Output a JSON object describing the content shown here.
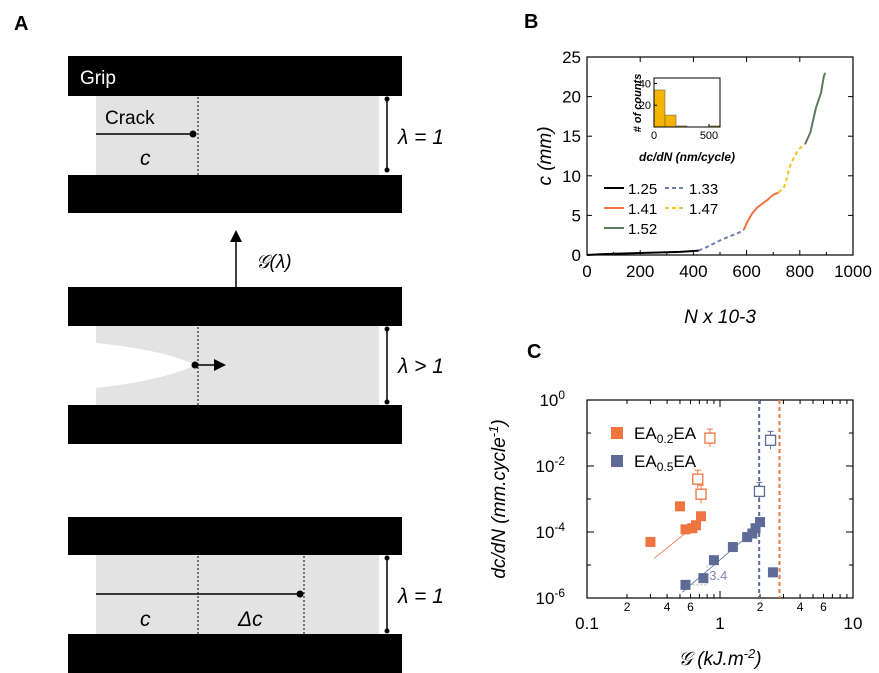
{
  "panel_a": {
    "label": "A",
    "grip_label": "Grip",
    "crack_label": "Crack",
    "c_label": "c",
    "stretch_1_label": "λ = 1",
    "stretch_gt_label": "λ > 1",
    "energy_label": "𝒢(λ)",
    "c_label_bottom": "c",
    "delta_c_label": "Δc",
    "stretch_3_label": "λ = 1"
  },
  "panel_b": {
    "label": "B",
    "inset": {
      "ylabel": "# of counts",
      "xlabel": "dc/dN (nm/cycle)"
    }
  },
  "panel_c": {
    "label": "C",
    "slope_label": "3.4"
  },
  "colors": {
    "grip": "#000000",
    "gel": "#e3e3e3",
    "s125": "#000000",
    "s133": "#6e7ea6",
    "s141": "#ee7540",
    "s147": "#f7c21b",
    "s152": "#5e7a5c",
    "ea02": "#ee7540",
    "ea05": "#5d6b96",
    "inset_bar": "#f5b400"
  },
  "chart_data": [
    {
      "type": "line",
      "xlabel": "N x 10-3",
      "ylabel": "c (mm)",
      "xlim": [
        0,
        1000
      ],
      "ylim": [
        0,
        25
      ],
      "xticks": [
        0,
        200,
        400,
        600,
        800,
        1000
      ],
      "xtick_labels": [
        "0",
        "200",
        "400",
        "600",
        "800",
        "1000"
      ],
      "yticks": [
        0,
        5,
        10,
        15,
        20,
        25
      ],
      "ytick_labels": [
        "0",
        "5",
        "10",
        "15",
        "20",
        "25"
      ],
      "legend": "lower-left",
      "series": [
        {
          "name": "1.25",
          "style": "solid",
          "x": [
            0,
            50,
            100,
            150,
            200,
            250,
            300,
            350,
            400,
            420
          ],
          "y": [
            0,
            0.1,
            0.15,
            0.2,
            0.25,
            0.3,
            0.35,
            0.4,
            0.5,
            0.55
          ]
        },
        {
          "name": "1.33",
          "style": "dashed",
          "x": [
            420,
            450,
            480,
            510,
            540,
            570,
            590
          ],
          "y": [
            0.55,
            1.0,
            1.5,
            2.0,
            2.4,
            2.8,
            3.2
          ]
        },
        {
          "name": "1.41",
          "style": "solid",
          "x": [
            590,
            600,
            620,
            640,
            660,
            680,
            690,
            700,
            720
          ],
          "y": [
            3.2,
            4.0,
            5.2,
            6.0,
            6.5,
            7.0,
            7.3,
            7.6,
            7.9
          ]
        },
        {
          "name": "1.47",
          "style": "dashed",
          "x": [
            720,
            740,
            750,
            760,
            780,
            800,
            820
          ],
          "y": [
            7.9,
            8.5,
            9.5,
            11.0,
            12.5,
            13.5,
            14.0
          ]
        },
        {
          "name": "1.52",
          "style": "solid",
          "x": [
            820,
            840,
            850,
            860,
            870,
            880,
            885,
            890,
            895
          ],
          "y": [
            14.0,
            15.5,
            17.0,
            18.5,
            19.5,
            20.5,
            21.5,
            22.5,
            23.0
          ]
        }
      ]
    },
    {
      "type": "bar",
      "xlabel": "dc/dN (nm/cycle)",
      "ylabel": "# of counts",
      "xlim": [
        0,
        600
      ],
      "ylim": [
        0,
        45
      ],
      "xticks": [
        0,
        500
      ],
      "xtick_labels": [
        "0",
        "500"
      ],
      "yticks": [
        0,
        20,
        40
      ],
      "ytick_labels": [
        "0",
        "20",
        "40"
      ],
      "bin_edges": [
        0,
        100,
        200,
        300,
        400,
        500,
        600
      ],
      "values": [
        34,
        11,
        1,
        0,
        0,
        1
      ]
    },
    {
      "type": "scatter",
      "xlabel": "𝒢 (kJ.m-2)",
      "ylabel": "dc/dN (mm.cycle-1)",
      "xscale": "log",
      "yscale": "log",
      "xlim": [
        0.1,
        10
      ],
      "ylim": [
        1e-06,
        1
      ],
      "xtick_labels": [
        "0.1",
        "1",
        "10"
      ],
      "minor_xtick_labels": [
        "2",
        "4",
        "6",
        "2",
        "4",
        "6"
      ],
      "ytick_labels": [
        "10-6",
        "10-4",
        "10-2",
        "100"
      ],
      "legend": "top-left",
      "series": [
        {
          "name": "EA0.2EA",
          "filled": {
            "x": [
              0.3,
              0.5,
              0.55,
              0.62,
              0.66,
              0.72
            ],
            "y": [
              5e-05,
              0.0006,
              0.00012,
              0.00013,
              0.00016,
              0.0003
            ]
          },
          "open": {
            "x": [
              0.68,
              0.72,
              0.84
            ],
            "y": [
              0.004,
              0.0014,
              0.07
            ]
          },
          "critical_G": 2.8
        },
        {
          "name": "EA0.5EA",
          "filled": {
            "x": [
              0.55,
              0.75,
              0.9,
              1.25,
              1.6,
              1.75,
              1.85,
              2.0,
              2.5
            ],
            "y": [
              2.5e-06,
              4e-06,
              1.4e-05,
              3.5e-05,
              7e-05,
              9e-05,
              0.00013,
              0.0002,
              6e-06
            ]
          },
          "open": {
            "x": [
              1.98,
              2.4
            ],
            "y": [
              0.0017,
              0.06
            ]
          },
          "critical_G": 1.97
        }
      ]
    }
  ]
}
